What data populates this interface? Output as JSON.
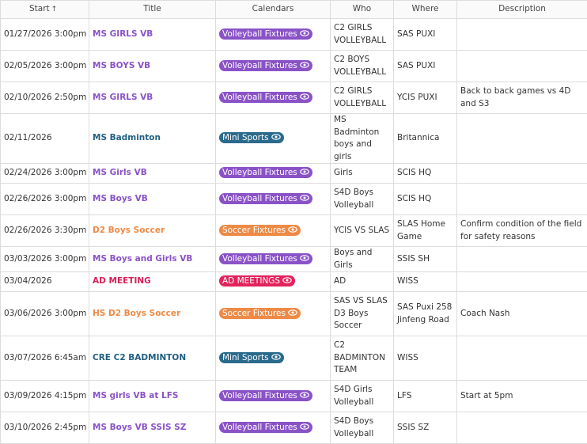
{
  "headers": {
    "start": "Start",
    "start_sort_icon": "sort-ascending-arrow",
    "title": "Title",
    "calendars": "Calendars",
    "who": "Who",
    "where": "Where",
    "description": "Description"
  },
  "calendar_colors": {
    "Volleyball Fixtures": "#8a52c7",
    "Mini Sports": "#2a6a8c",
    "Soccer Fixtures": "#ee8a46",
    "AD MEETINGS": "#e2235d"
  },
  "title_colors": {
    "Volleyball Fixtures": "#8a52c7",
    "Mini Sports": "#1f5f80",
    "Soccer Fixtures": "#ee8a46",
    "AD MEETINGS": "#d81f57"
  },
  "rows": [
    {
      "start": "01/27/2026 3:00pm",
      "title": "MS GIRLS VB",
      "calendar": "Volleyball Fixtures",
      "who": "C2 GIRLS VOLLEYBALL",
      "where": "SAS PUXI",
      "description": ""
    },
    {
      "start": "02/05/2026 3:00pm",
      "title": "MS BOYS VB",
      "calendar": "Volleyball Fixtures",
      "who": "C2 BOYS VOLLEYBALL",
      "where": "SAS PUXI",
      "description": ""
    },
    {
      "start": "02/10/2026 2:50pm",
      "title": "MS GIRLS VB",
      "calendar": "Volleyball Fixtures",
      "who": "C2 GIRLS VOLLEYBALL",
      "where": "YCIS PUXI",
      "description": "Back to back games vs 4D and S3"
    },
    {
      "start": "02/11/2026",
      "title": "MS Badminton",
      "calendar": "Mini Sports",
      "who": "MS Badminton boys and girls",
      "where": "Britannica",
      "description": ""
    },
    {
      "start": "02/24/2026 3:00pm",
      "title": "MS Girls VB",
      "calendar": "Volleyball Fixtures",
      "who": "Girls",
      "where": "SCIS HQ",
      "description": ""
    },
    {
      "start": "02/26/2026 3:00pm",
      "title": "MS Boys VB",
      "calendar": "Volleyball Fixtures",
      "who": "S4D Boys Volleyball",
      "where": "SCIS HQ",
      "description": ""
    },
    {
      "start": "02/26/2026 3:30pm",
      "title": "D2 Boys Soccer",
      "calendar": "Soccer Fixtures",
      "who": "YCIS VS SLAS",
      "where": "SLAS Home Game",
      "description": "Confirm condition of the field for safety reasons"
    },
    {
      "start": "03/03/2026 3:00pm",
      "title": "MS Boys and Girls VB",
      "calendar": "Volleyball Fixtures",
      "who": "Boys and Girls",
      "where": "SSIS SH",
      "description": ""
    },
    {
      "start": "03/04/2026",
      "title": "AD MEETING",
      "calendar": "AD MEETINGS",
      "who": "AD",
      "where": "WISS",
      "description": ""
    },
    {
      "start": "03/06/2026 3:00pm",
      "title": "HS D2 Boys Soccer",
      "calendar": "Soccer Fixtures",
      "who": "SAS VS SLAS D3 Boys Soccer",
      "where": "SAS Puxi 258 Jinfeng Road",
      "description": "Coach Nash"
    },
    {
      "start": "03/07/2026 6:45am",
      "title": "CRE C2 BADMINTON",
      "calendar": "Mini Sports",
      "who": "C2 BADMINTON TEAM",
      "where": "WISS",
      "description": ""
    },
    {
      "start": "03/09/2026 4:15pm",
      "title": "MS girls VB at LFS",
      "calendar": "Volleyball Fixtures",
      "who": "S4D Girls Volleyball",
      "where": "LFS",
      "description": "Start at 5pm"
    },
    {
      "start": "03/10/2026 2:45pm",
      "title": "MS Boys VB SSIS SZ",
      "calendar": "Volleyball Fixtures",
      "who": "S4D Boys Volleyball",
      "where": "SSIS SZ",
      "description": ""
    }
  ]
}
